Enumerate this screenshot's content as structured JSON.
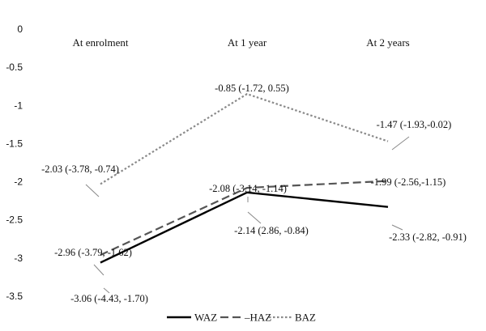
{
  "chart_data": {
    "type": "line",
    "categories": [
      "At enrolment",
      "At 1 year",
      "At 2 years"
    ],
    "ylim": [
      -3.5,
      0
    ],
    "yticks": [
      "0",
      "-0.5",
      "-1",
      "-1.5",
      "-2",
      "-2.5",
      "-3",
      "-3.5"
    ],
    "ytick_values": [
      0,
      -0.5,
      -1,
      -1.5,
      -2,
      -2.5,
      -3,
      -3.5
    ],
    "grid": false,
    "legend_position": "bottom",
    "series": [
      {
        "name": "WAZ",
        "style": "solid",
        "color": "#000000",
        "values": [
          -3.06,
          -2.14,
          -2.33
        ],
        "labels": [
          "-3.06 (-4.43, -1.70)",
          "-2.14 (2.86, -0.84)",
          "-2.33 (-2.82, -0.91)"
        ]
      },
      {
        "name": "HAZ",
        "style": "dashed",
        "color": "#555555",
        "values": [
          -2.96,
          -2.08,
          -1.99
        ],
        "labels": [
          "-2.96 (-3.79, -1.62)",
          "-2.08 (-3.14, -1.14)",
          "-1.99 (-2.56,-1.15)"
        ]
      },
      {
        "name": "BAZ",
        "style": "dotted",
        "color": "#8a8a8a",
        "values": [
          -2.03,
          -0.85,
          -1.47
        ],
        "labels": [
          "-2.03 (-3.78, -0.74)",
          "-0.85 (-1.72, 0.55)",
          "-1.47 (-1.93,-0.02)"
        ]
      }
    ],
    "legend_labels": [
      "WAZ",
      "–HAZ",
      "BAZ"
    ]
  }
}
